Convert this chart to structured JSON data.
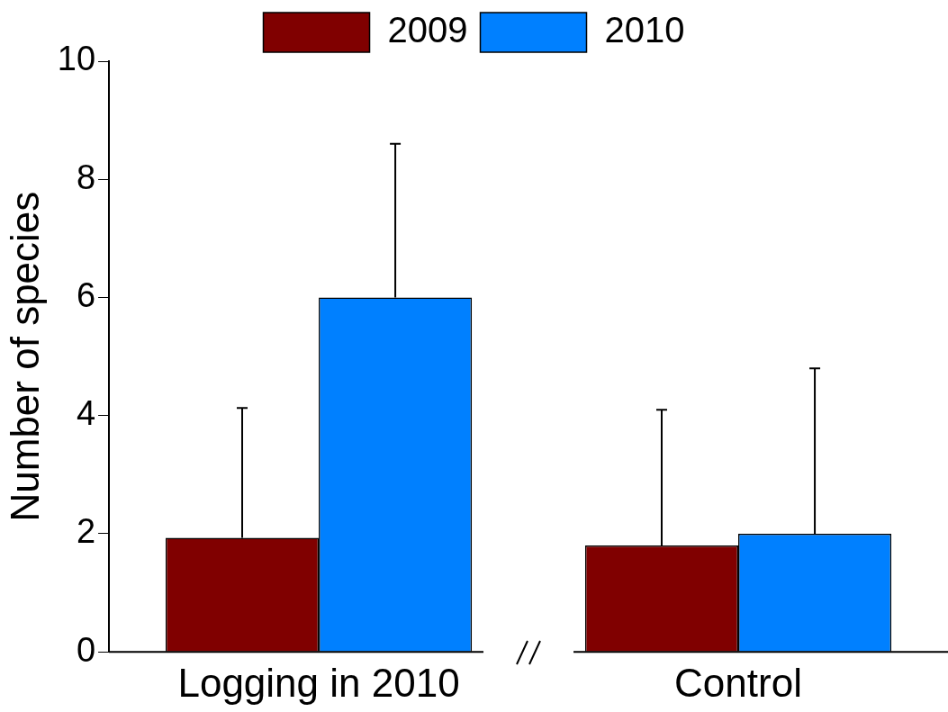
{
  "chart_data": {
    "type": "bar",
    "ylabel": "Number of species",
    "categories": [
      "Logging in 2010",
      "Control"
    ],
    "series": [
      {
        "name": "2009",
        "color": "#800000",
        "values": [
          1.93,
          1.8
        ],
        "errors": [
          [
            1.93,
            4.13
          ],
          [
            1.8,
            4.1
          ]
        ]
      },
      {
        "name": "2010",
        "color": "#0080ff",
        "values": [
          6.0,
          2.0
        ],
        "errors": [
          [
            6.0,
            8.6
          ],
          [
            2.0,
            4.8
          ]
        ]
      }
    ],
    "ylim": [
      0,
      10
    ],
    "yticks": [
      0,
      2,
      4,
      6,
      8,
      10
    ],
    "grid": false,
    "legend": "top"
  }
}
